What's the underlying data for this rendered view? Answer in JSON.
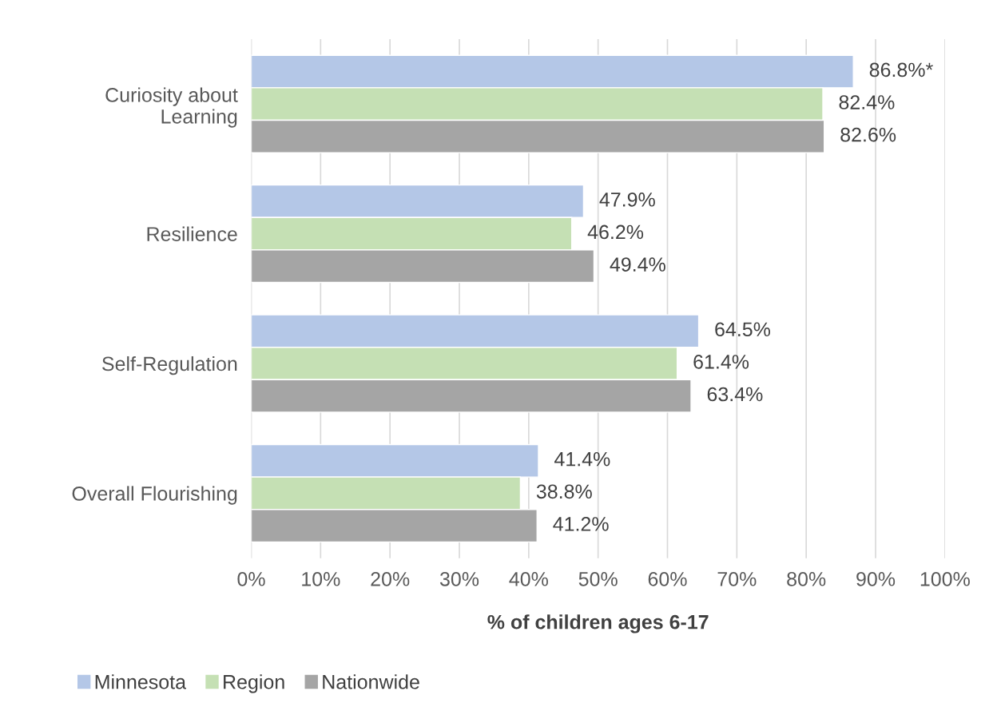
{
  "chart_data": {
    "type": "bar",
    "orientation": "horizontal",
    "categories": [
      "Curiosity about Learning",
      "Resilience",
      "Self-Regulation",
      "Overall Flourishing"
    ],
    "series": [
      {
        "name": "Minnesota",
        "color": "#b4c7e7",
        "values": [
          86.8,
          47.9,
          64.5,
          41.4
        ],
        "value_labels": [
          "86.8%*",
          "47.9%",
          "64.5%",
          "41.4%"
        ]
      },
      {
        "name": "Region",
        "color": "#c5e0b4",
        "values": [
          82.4,
          46.2,
          61.4,
          38.8
        ],
        "value_labels": [
          "82.4%",
          "46.2%",
          "61.4%",
          "38.8%"
        ]
      },
      {
        "name": "Nationwide",
        "color": "#a5a5a5",
        "values": [
          82.6,
          49.4,
          63.4,
          41.2
        ],
        "value_labels": [
          "82.6%",
          "49.4%",
          "63.4%",
          "41.2%"
        ]
      }
    ],
    "xlabel": "% of children ages 6-17",
    "xlim": [
      0,
      100
    ],
    "xticks": [
      {
        "value": 0,
        "label": "0%"
      },
      {
        "value": 10,
        "label": "10%"
      },
      {
        "value": 20,
        "label": "20%"
      },
      {
        "value": 30,
        "label": "30%"
      },
      {
        "value": 40,
        "label": "40%"
      },
      {
        "value": 50,
        "label": "50%"
      },
      {
        "value": 60,
        "label": "60%"
      },
      {
        "value": 70,
        "label": "70%"
      },
      {
        "value": 80,
        "label": "80%"
      },
      {
        "value": 90,
        "label": "90%"
      },
      {
        "value": 100,
        "label": "100%"
      }
    ],
    "grid": "x",
    "legend": "bottom left"
  }
}
